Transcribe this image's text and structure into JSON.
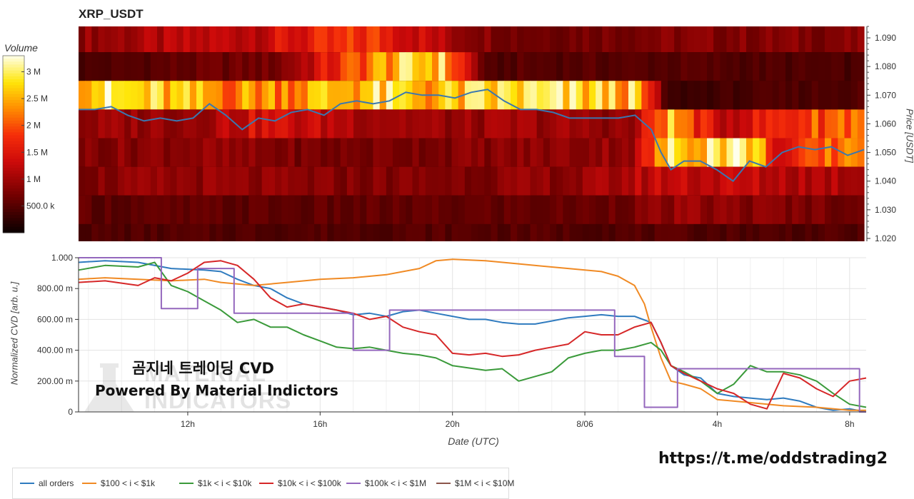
{
  "chart_data": [
    {
      "type": "heatmap",
      "title": "XRP_USDT",
      "colorbar_title": "Volume",
      "colorbar_ticks": [
        "500.0 k",
        "1 M",
        "1.5 M",
        "2 M",
        "2.5 M",
        "3 M"
      ],
      "colorbar_tick_values": [
        500000,
        1000000,
        1500000,
        2000000,
        2500000,
        3000000
      ],
      "colorbar_range": [
        0,
        3300000
      ],
      "ylabel": "Price [USDT]",
      "y_ticks": [
        "1.020",
        "1.030",
        "1.040",
        "1.050",
        "1.060",
        "1.070",
        "1.080",
        "1.090"
      ],
      "y_tick_values": [
        1.02,
        1.03,
        1.04,
        1.05,
        1.06,
        1.07,
        1.08,
        1.09
      ],
      "ylim": [
        1.019,
        1.094
      ],
      "price_bins": [
        1.02,
        1.03,
        1.04,
        1.05,
        1.06,
        1.07,
        1.08,
        1.09
      ],
      "volume_by_bin_over_time": [
        {
          "bin": 1.09,
          "x": [
            8.5,
            14.0,
            17.5,
            20.0,
            22.0,
            27.0,
            31.0,
            32.5
          ],
          "values": [
            900000,
            1300000,
            1800000,
            1000000,
            700000,
            800000,
            800000,
            800000
          ]
        },
        {
          "bin": 1.08,
          "x": [
            8.5,
            12.0,
            14.5,
            18.0,
            19.5,
            21.0,
            22.0,
            27.0,
            32.5
          ],
          "values": [
            400000,
            600000,
            700000,
            2500000,
            2800000,
            400000,
            500000,
            500000,
            400000
          ]
        },
        {
          "bin": 1.07,
          "x": [
            8.5,
            9.5,
            11.5,
            13.0,
            15.0,
            17.5,
            19.5,
            22.0,
            25.5,
            26.5,
            29.0,
            32.5
          ],
          "values": [
            3000000,
            2800000,
            2500000,
            2300000,
            2400000,
            2700000,
            2500000,
            2800000,
            2600000,
            300000,
            400000,
            500000
          ]
        },
        {
          "bin": 1.06,
          "x": [
            8.5,
            12.0,
            14.0,
            17.5,
            20.0,
            22.0,
            25.5,
            26.5,
            28.0,
            29.5,
            32.5
          ],
          "values": [
            900000,
            1000000,
            1400000,
            1100000,
            900000,
            1000000,
            900000,
            2600000,
            1200000,
            1600000,
            2300000
          ]
        },
        {
          "bin": 1.05,
          "x": [
            8.5,
            12.0,
            16.0,
            20.0,
            24.0,
            25.5,
            26.5,
            28.0,
            29.0,
            30.0,
            32.5
          ],
          "values": [
            800000,
            900000,
            700000,
            800000,
            900000,
            1000000,
            2700000,
            3000000,
            2900000,
            1300000,
            2600000
          ]
        },
        {
          "bin": 1.04,
          "x": [
            8.5,
            12.0,
            16.0,
            20.0,
            24.0,
            26.5,
            29.0,
            32.5
          ],
          "values": [
            800000,
            900000,
            800000,
            800000,
            900000,
            1300000,
            1200000,
            1100000
          ]
        },
        {
          "bin": 1.03,
          "x": [
            8.5,
            16.0,
            24.0,
            27.0,
            32.5
          ],
          "values": [
            550000,
            550000,
            600000,
            900000,
            700000
          ]
        },
        {
          "bin": 1.02,
          "x": [
            8.5,
            20.0,
            32.5
          ],
          "values": [
            450000,
            500000,
            450000
          ]
        }
      ],
      "series": [
        {
          "name": "Price",
          "color": "#3a77b0",
          "x": [
            8.5,
            9.0,
            9.5,
            10.0,
            10.5,
            11.0,
            11.5,
            12.0,
            12.5,
            13.0,
            13.5,
            14.0,
            14.5,
            15.0,
            15.5,
            16.0,
            16.5,
            17.0,
            17.5,
            18.0,
            18.5,
            19.0,
            19.5,
            20.0,
            20.5,
            21.0,
            21.5,
            22.0,
            22.5,
            23.0,
            23.5,
            24.0,
            24.5,
            25.0,
            25.5,
            26.0,
            26.3,
            26.6,
            27.0,
            27.5,
            28.0,
            28.5,
            29.0,
            29.5,
            30.0,
            30.5,
            31.0,
            31.5,
            32.0,
            32.5
          ],
          "y": [
            1.065,
            1.065,
            1.066,
            1.063,
            1.061,
            1.062,
            1.061,
            1.062,
            1.067,
            1.063,
            1.058,
            1.062,
            1.061,
            1.064,
            1.065,
            1.063,
            1.067,
            1.068,
            1.067,
            1.068,
            1.071,
            1.07,
            1.07,
            1.069,
            1.071,
            1.072,
            1.068,
            1.065,
            1.065,
            1.064,
            1.062,
            1.062,
            1.062,
            1.062,
            1.063,
            1.058,
            1.05,
            1.044,
            1.047,
            1.047,
            1.044,
            1.04,
            1.047,
            1.045,
            1.05,
            1.052,
            1.051,
            1.052,
            1.049,
            1.051
          ]
        }
      ]
    },
    {
      "type": "line",
      "title": "",
      "xlabel": "Date (UTC)",
      "ylabel": "Normalized CVD [arb. u.]",
      "x_ticks": [
        "12h",
        "16h",
        "20h",
        "8/06",
        "4h",
        "8h"
      ],
      "x_tick_values": [
        12,
        16,
        20,
        24,
        28,
        32
      ],
      "xlim": [
        8.7,
        32.5
      ],
      "y_ticks": [
        "0",
        "200.00 m",
        "400.00 m",
        "600.00 m",
        "800.00 m",
        "1.000"
      ],
      "y_tick_values": [
        0,
        0.2,
        0.4,
        0.6,
        0.8,
        1.0
      ],
      "ylim": [
        0,
        1.0
      ],
      "grid": true,
      "legend_position": "bottom",
      "series": [
        {
          "name": "all orders",
          "color": "#2f7bbf",
          "x": [
            8.7,
            9.5,
            10.5,
            11.5,
            12.5,
            13.0,
            13.5,
            14.0,
            14.5,
            15.0,
            15.5,
            16.0,
            16.5,
            17.0,
            17.5,
            18.0,
            18.5,
            19.0,
            19.5,
            20.0,
            20.5,
            21.0,
            21.5,
            22.0,
            22.5,
            23.0,
            23.5,
            24.0,
            24.5,
            25.0,
            25.5,
            26.0,
            26.3,
            26.6,
            27.0,
            27.5,
            28.0,
            28.5,
            29.0,
            29.5,
            30.0,
            30.5,
            31.0,
            31.5,
            32.0,
            32.5
          ],
          "y": [
            0.97,
            0.98,
            0.97,
            0.93,
            0.92,
            0.91,
            0.86,
            0.82,
            0.8,
            0.74,
            0.7,
            0.68,
            0.66,
            0.63,
            0.64,
            0.62,
            0.65,
            0.66,
            0.64,
            0.62,
            0.6,
            0.6,
            0.58,
            0.57,
            0.57,
            0.59,
            0.61,
            0.62,
            0.63,
            0.62,
            0.62,
            0.58,
            0.45,
            0.3,
            0.24,
            0.22,
            0.12,
            0.1,
            0.09,
            0.08,
            0.09,
            0.07,
            0.03,
            0.01,
            0.02,
            0.0
          ]
        },
        {
          "name": "$100 < i < $1k",
          "color": "#f08a24",
          "x": [
            8.7,
            9.5,
            10.5,
            11.5,
            12.5,
            13.0,
            14.0,
            15.0,
            16.0,
            17.0,
            18.0,
            19.0,
            19.5,
            20.0,
            21.0,
            22.0,
            23.0,
            24.0,
            24.5,
            25.0,
            25.5,
            25.8,
            26.0,
            26.3,
            26.6,
            27.0,
            27.5,
            28.0,
            29.0,
            30.0,
            31.0,
            32.0,
            32.5
          ],
          "y": [
            0.86,
            0.87,
            0.86,
            0.85,
            0.86,
            0.84,
            0.82,
            0.84,
            0.86,
            0.87,
            0.89,
            0.93,
            0.98,
            0.99,
            0.98,
            0.96,
            0.94,
            0.92,
            0.91,
            0.88,
            0.82,
            0.7,
            0.55,
            0.35,
            0.2,
            0.18,
            0.15,
            0.08,
            0.06,
            0.04,
            0.03,
            0.01,
            0.01
          ]
        },
        {
          "name": "$1k < i < $10k",
          "color": "#3a9a3a",
          "x": [
            8.7,
            9.5,
            10.5,
            11.0,
            11.5,
            12.0,
            12.5,
            13.0,
            13.5,
            14.0,
            14.5,
            15.0,
            15.5,
            16.0,
            16.5,
            17.0,
            17.5,
            18.0,
            18.5,
            19.0,
            19.5,
            20.0,
            21.0,
            21.5,
            22.0,
            22.5,
            23.0,
            23.5,
            24.0,
            24.5,
            25.0,
            25.5,
            26.0,
            26.3,
            26.6,
            27.0,
            27.5,
            28.0,
            28.5,
            29.0,
            29.5,
            30.0,
            30.5,
            31.0,
            31.5,
            32.0,
            32.5
          ],
          "y": [
            0.92,
            0.95,
            0.94,
            0.97,
            0.82,
            0.78,
            0.72,
            0.66,
            0.58,
            0.6,
            0.55,
            0.55,
            0.5,
            0.46,
            0.42,
            0.41,
            0.42,
            0.4,
            0.38,
            0.37,
            0.35,
            0.3,
            0.27,
            0.28,
            0.2,
            0.23,
            0.26,
            0.35,
            0.38,
            0.4,
            0.4,
            0.42,
            0.45,
            0.4,
            0.3,
            0.26,
            0.2,
            0.12,
            0.18,
            0.3,
            0.26,
            0.26,
            0.24,
            0.2,
            0.12,
            0.05,
            0.03
          ]
        },
        {
          "name": "$10k < i < $100k",
          "color": "#d62728",
          "x": [
            8.7,
            9.5,
            10.5,
            11.0,
            11.5,
            12.0,
            12.5,
            13.0,
            13.5,
            14.0,
            14.5,
            15.0,
            15.5,
            16.0,
            16.5,
            17.0,
            17.5,
            18.0,
            18.5,
            19.0,
            19.5,
            20.0,
            20.5,
            21.0,
            21.5,
            22.0,
            22.5,
            23.0,
            23.5,
            24.0,
            24.5,
            25.0,
            25.5,
            26.0,
            26.3,
            26.6,
            27.0,
            27.5,
            28.0,
            28.5,
            29.0,
            29.5,
            30.0,
            30.5,
            31.0,
            31.5,
            32.0,
            32.5
          ],
          "y": [
            0.84,
            0.85,
            0.82,
            0.87,
            0.85,
            0.9,
            0.97,
            0.98,
            0.95,
            0.86,
            0.74,
            0.68,
            0.7,
            0.68,
            0.66,
            0.64,
            0.6,
            0.62,
            0.55,
            0.52,
            0.5,
            0.38,
            0.37,
            0.38,
            0.36,
            0.37,
            0.4,
            0.42,
            0.44,
            0.52,
            0.5,
            0.5,
            0.55,
            0.58,
            0.45,
            0.3,
            0.25,
            0.2,
            0.15,
            0.12,
            0.05,
            0.02,
            0.25,
            0.22,
            0.15,
            0.1,
            0.2,
            0.22
          ]
        },
        {
          "name": "$100k < i < $1M",
          "color": "#9467bd",
          "x": [
            8.7,
            11.2,
            11.2,
            12.3,
            12.3,
            13.4,
            13.4,
            17.0,
            17.0,
            18.1,
            18.1,
            24.9,
            24.9,
            25.8,
            25.8,
            26.8,
            26.8,
            32.3,
            32.3,
            32.5
          ],
          "y": [
            1.0,
            1.0,
            0.67,
            0.67,
            0.93,
            0.93,
            0.64,
            0.64,
            0.4,
            0.4,
            0.66,
            0.66,
            0.36,
            0.36,
            0.03,
            0.03,
            0.28,
            0.28,
            0.0,
            0.0
          ]
        },
        {
          "name": "$1M < i < $10M",
          "color": "#8c564b",
          "x": [],
          "y": []
        }
      ]
    }
  ],
  "overlay": {
    "korean_text": "곰지네 트레이딩 CVD",
    "powered_text": "Powered By Material Indictors",
    "link_text": "https://t.me/oddstrading2",
    "watermark_line1": "MATERIAL",
    "watermark_line2": "INDICATORS"
  }
}
